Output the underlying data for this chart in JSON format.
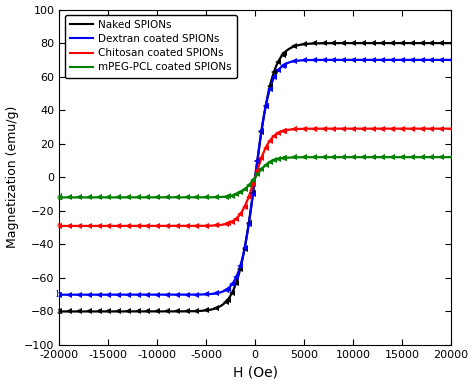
{
  "xlabel": "H (Oe)",
  "ylabel": "Magnetization (emu/g)",
  "xlim": [
    -20000,
    20000
  ],
  "ylim": [
    -100,
    100
  ],
  "xticks": [
    -20000,
    -15000,
    -10000,
    -5000,
    0,
    5000,
    10000,
    15000,
    20000
  ],
  "yticks": [
    -100,
    -80,
    -60,
    -40,
    -20,
    0,
    20,
    40,
    60,
    80,
    100
  ],
  "series": [
    {
      "label": "Naked SPIONs",
      "color": "black",
      "Ms": 80.0,
      "k": 0.00055,
      "letter": "a"
    },
    {
      "label": "Dextran coated SPIONs",
      "color": "blue",
      "Ms": 70.0,
      "k": 0.00065,
      "letter": "b"
    },
    {
      "label": "Chitosan coated SPIONs",
      "color": "red",
      "Ms": 29.0,
      "k": 0.00065,
      "letter": "c"
    },
    {
      "label": "mPEG-PCL coated SPIONs",
      "color": "green",
      "Ms": 12.0,
      "k": 0.00065,
      "letter": "d"
    }
  ],
  "background_color": "#ffffff",
  "marker": "<",
  "markersize": 4.5,
  "linewidth": 1.6,
  "n_markers_flat": 18,
  "n_markers_transition": 14
}
